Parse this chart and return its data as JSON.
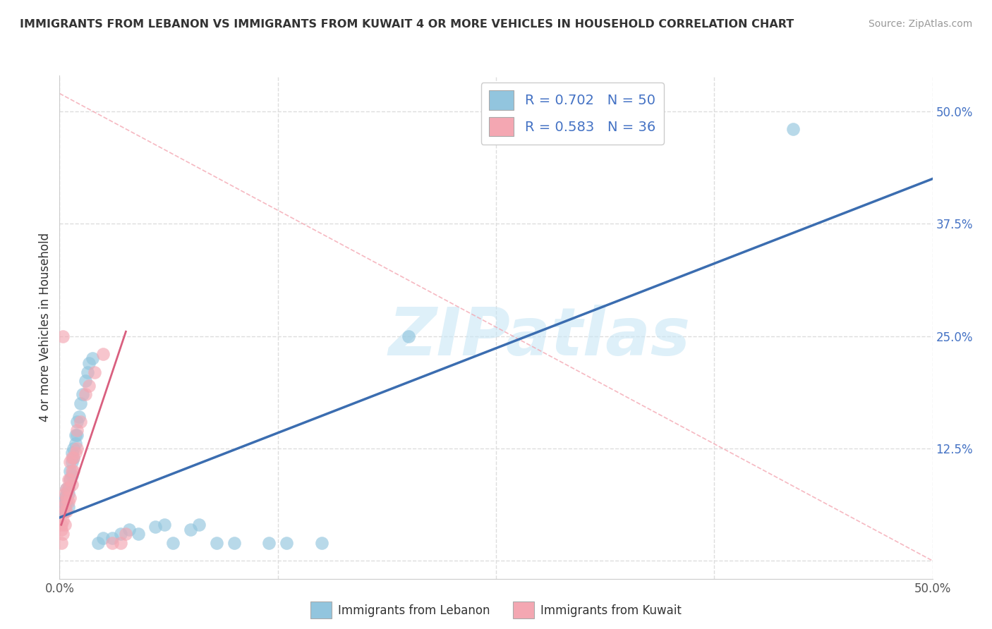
{
  "title": "IMMIGRANTS FROM LEBANON VS IMMIGRANTS FROM KUWAIT 4 OR MORE VEHICLES IN HOUSEHOLD CORRELATION CHART",
  "source": "Source: ZipAtlas.com",
  "ylabel": "4 or more Vehicles in Household",
  "xlim": [
    0.0,
    0.5
  ],
  "ylim": [
    -0.02,
    0.54
  ],
  "xticks": [
    0.0,
    0.125,
    0.25,
    0.375,
    0.5
  ],
  "yticks": [
    0.0,
    0.125,
    0.25,
    0.375,
    0.5
  ],
  "color_blue": "#92C5DE",
  "color_pink": "#F4A7B2",
  "line_color_blue": "#3B6DB0",
  "line_color_pink": "#D95F7F",
  "dash_color": "#F4A7B2",
  "watermark_text": "ZIPatlas",
  "background_color": "#FFFFFF",
  "legend_label1": "Immigrants from Lebanon",
  "legend_label2": "Immigrants from Kuwait",
  "blue_line_x0": 0.0,
  "blue_line_y0": 0.048,
  "blue_line_x1": 0.5,
  "blue_line_y1": 0.425,
  "pink_line_x0": 0.001,
  "pink_line_y0": 0.04,
  "pink_line_x1": 0.038,
  "pink_line_y1": 0.255,
  "dash_line_x0": 0.0,
  "dash_line_y0": 0.52,
  "dash_line_x1": 0.5,
  "dash_line_y1": 0.0,
  "blue_x": [
    0.001,
    0.001,
    0.002,
    0.002,
    0.003,
    0.003,
    0.003,
    0.003,
    0.004,
    0.004,
    0.004,
    0.005,
    0.005,
    0.005,
    0.006,
    0.006,
    0.007,
    0.007,
    0.007,
    0.008,
    0.008,
    0.009,
    0.009,
    0.01,
    0.01,
    0.011,
    0.012,
    0.013,
    0.015,
    0.016,
    0.017,
    0.019,
    0.022,
    0.025,
    0.03,
    0.035,
    0.04,
    0.045,
    0.055,
    0.06,
    0.065,
    0.075,
    0.08,
    0.09,
    0.1,
    0.12,
    0.13,
    0.15,
    0.2,
    0.42
  ],
  "blue_y": [
    0.055,
    0.06,
    0.055,
    0.065,
    0.055,
    0.065,
    0.06,
    0.07,
    0.065,
    0.075,
    0.08,
    0.06,
    0.075,
    0.08,
    0.09,
    0.1,
    0.095,
    0.11,
    0.12,
    0.115,
    0.125,
    0.13,
    0.14,
    0.14,
    0.155,
    0.16,
    0.175,
    0.185,
    0.2,
    0.21,
    0.22,
    0.225,
    0.02,
    0.025,
    0.025,
    0.03,
    0.035,
    0.03,
    0.038,
    0.04,
    0.02,
    0.035,
    0.04,
    0.02,
    0.02,
    0.02,
    0.02,
    0.02,
    0.25,
    0.48
  ],
  "pink_x": [
    0.001,
    0.001,
    0.001,
    0.002,
    0.002,
    0.002,
    0.002,
    0.003,
    0.003,
    0.003,
    0.003,
    0.004,
    0.004,
    0.004,
    0.005,
    0.005,
    0.005,
    0.006,
    0.006,
    0.006,
    0.007,
    0.007,
    0.007,
    0.008,
    0.008,
    0.009,
    0.01,
    0.01,
    0.012,
    0.015,
    0.017,
    0.02,
    0.025,
    0.03,
    0.035,
    0.038
  ],
  "pink_y": [
    0.02,
    0.035,
    0.04,
    0.03,
    0.045,
    0.06,
    0.25,
    0.04,
    0.055,
    0.065,
    0.075,
    0.055,
    0.07,
    0.08,
    0.065,
    0.08,
    0.09,
    0.07,
    0.09,
    0.11,
    0.085,
    0.1,
    0.115,
    0.1,
    0.115,
    0.12,
    0.125,
    0.145,
    0.155,
    0.185,
    0.195,
    0.21,
    0.23,
    0.02,
    0.02,
    0.03
  ]
}
